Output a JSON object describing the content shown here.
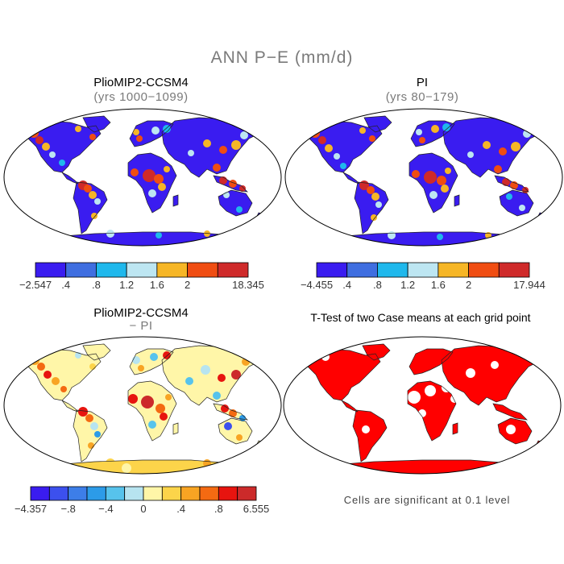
{
  "title": "ANN P−E (mm/d)",
  "panels": [
    {
      "id": "plio",
      "title": "PlioMIP2-CCSM4",
      "subtitle": "(yrs 1000−1099)"
    },
    {
      "id": "pi",
      "title": "PI",
      "subtitle": "(yrs 80−179)"
    },
    {
      "id": "diff",
      "title": "PlioMIP2-CCSM4",
      "subtitle": "− PI"
    },
    {
      "id": "ttest",
      "title": "T-Test of two Case means at each grid point",
      "subtitle": ""
    }
  ],
  "colorbars": [
    {
      "colors": [
        "#3a1cf0",
        "#3f6ee0",
        "#1fb8ec",
        "#bde6f2",
        "#f6b626",
        "#f04d12",
        "#cf2a2a"
      ],
      "labels": [
        "−2.547",
        ".4",
        ".8",
        "1.2",
        "1.6",
        "2",
        "18.345"
      ]
    },
    {
      "colors": [
        "#3a1cf0",
        "#3f6ee0",
        "#1fb8ec",
        "#bde6f2",
        "#f6b626",
        "#f04d12",
        "#cf2a2a"
      ],
      "labels": [
        "−4.455",
        ".4",
        ".8",
        "1.2",
        "1.6",
        "2",
        "17.944"
      ]
    },
    {
      "colors": [
        "#3a1cf0",
        "#3c50ee",
        "#3d7ee8",
        "#2c9be8",
        "#57c3ec",
        "#b7e4f0",
        "#fff6a8",
        "#fcd44a",
        "#f8a423",
        "#f46a12",
        "#e7140f",
        "#cc2a2a"
      ],
      "labels": [
        "−4.357",
        "−.8",
        "−.4",
        "0",
        ".4",
        ".8",
        "6.555"
      ]
    }
  ],
  "note": "Cells are significant at 0.1 level",
  "colors": {
    "land_background": "#ffffff",
    "outline": "#000000",
    "significant": "#ff0000"
  }
}
